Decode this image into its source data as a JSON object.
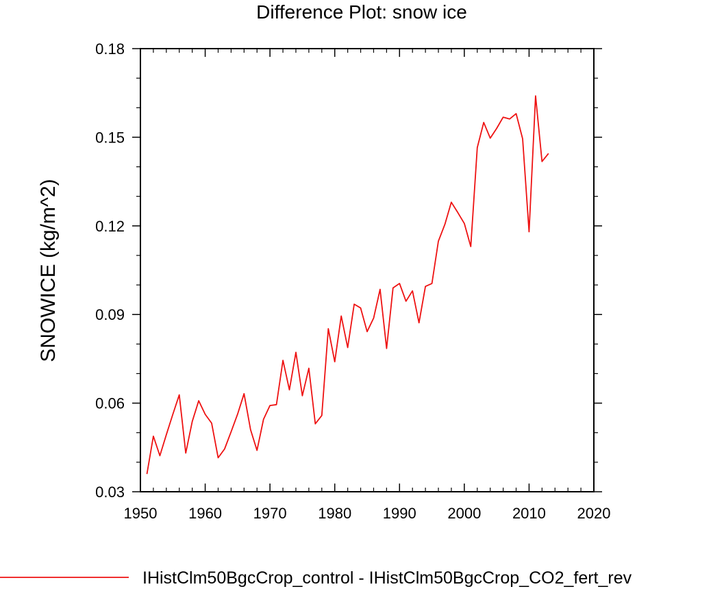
{
  "chart_data": {
    "type": "line",
    "title": "Difference Plot: snow ice",
    "xlabel": "",
    "ylabel": "SNOWICE  (kg/m^2)",
    "xlim": [
      1950,
      2020
    ],
    "ylim": [
      0.03,
      0.18
    ],
    "xticks": [
      1950,
      1960,
      1970,
      1980,
      1990,
      2000,
      2010,
      2020
    ],
    "xtick_labels": [
      "1950",
      "1960",
      "1970",
      "1980",
      "1990",
      "2000",
      "2010",
      "2020"
    ],
    "yticks": [
      0.03,
      0.06,
      0.09,
      0.12,
      0.15,
      0.18
    ],
    "ytick_labels": [
      "0.03",
      "0.06",
      "0.09",
      "0.12",
      "0.15",
      "0.18"
    ],
    "grid": false,
    "legend_position": "bottom",
    "series": [
      {
        "name": "IHistClm50BgcCrop_control - IHistClm50BgcCrop_CO2_fert_rev",
        "color": "#ee1111",
        "x": [
          1951,
          1952,
          1953,
          1954,
          1955,
          1956,
          1957,
          1958,
          1959,
          1960,
          1961,
          1962,
          1963,
          1964,
          1965,
          1966,
          1967,
          1968,
          1969,
          1970,
          1971,
          1972,
          1973,
          1974,
          1975,
          1976,
          1977,
          1978,
          1979,
          1980,
          1981,
          1982,
          1983,
          1984,
          1985,
          1986,
          1987,
          1988,
          1989,
          1990,
          1991,
          1992,
          1993,
          1994,
          1995,
          1996,
          1997,
          1998,
          1999,
          2000,
          2001,
          2002,
          2003,
          2004,
          2005,
          2006,
          2007,
          2008,
          2009,
          2010,
          2011,
          2012,
          2013
        ],
        "y": [
          0.036,
          0.0488,
          0.0422,
          0.0493,
          0.0562,
          0.0628,
          0.0431,
          0.0538,
          0.0608,
          0.0562,
          0.0532,
          0.0415,
          0.0445,
          0.0503,
          0.0563,
          0.0632,
          0.051,
          0.044,
          0.0545,
          0.0592,
          0.0595,
          0.0745,
          0.0645,
          0.0772,
          0.0625,
          0.0718,
          0.053,
          0.0558,
          0.0852,
          0.074,
          0.0895,
          0.0788,
          0.0935,
          0.0922,
          0.0842,
          0.0888,
          0.0985,
          0.0785,
          0.099,
          0.1005,
          0.0945,
          0.098,
          0.0872,
          0.0995,
          0.1005,
          0.1148,
          0.1205,
          0.128,
          0.1245,
          0.1208,
          0.113,
          0.1465,
          0.155,
          0.1497,
          0.153,
          0.1568,
          0.1562,
          0.158,
          0.1495,
          0.118,
          0.164,
          0.1418,
          0.1445
        ]
      }
    ]
  }
}
